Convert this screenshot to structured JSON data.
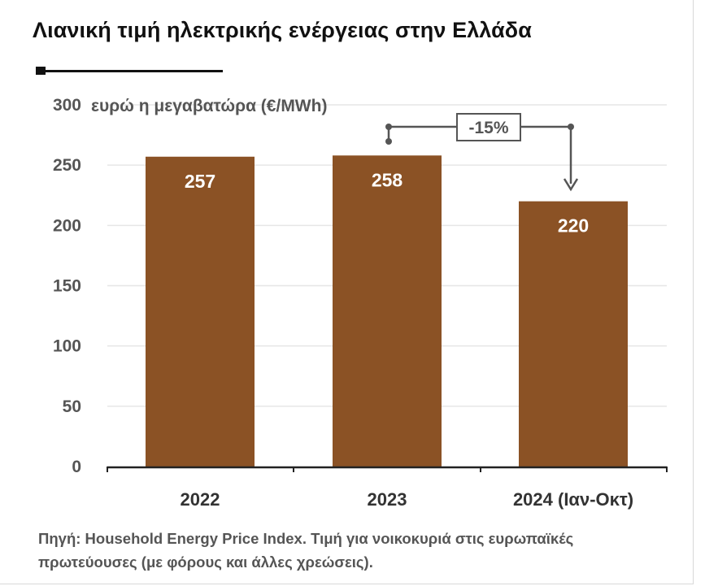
{
  "title": "Λιανική τιμή ηλεκτρικής ενέργειας στην Ελλάδα",
  "source": "Πηγή: Household Energy Price Index. Τιμή για νοικοκυριά στις ευρωπαϊκές πρωτεύουσες (με φόρους και άλλες χρεώσεις).",
  "colors": {
    "bar": "#8b5225",
    "text": "#555555",
    "grid": "#e6e6e6"
  },
  "chart_data": {
    "type": "bar",
    "title": "Λιανική τιμή ηλεκτρικής ενέργειας στην Ελλάδα",
    "ylabel": "ευρώ η μεγαβατώρα (€/MWh)",
    "xlabel": "",
    "categories": [
      "2022",
      "2023",
      "2024 (Ιαν-Οκτ)"
    ],
    "values": [
      257,
      258,
      220
    ],
    "data_labels": [
      "257",
      "258",
      "220"
    ],
    "ylim": [
      0,
      300
    ],
    "yticks": [
      0,
      50,
      100,
      150,
      200,
      250,
      300
    ],
    "grid": true,
    "annotation": {
      "text": "-15%",
      "from": "2023",
      "to": "2024 (Ιαν-Οκτ)"
    }
  }
}
